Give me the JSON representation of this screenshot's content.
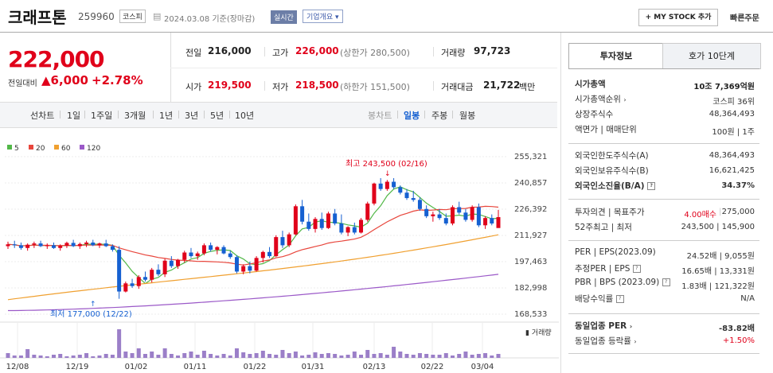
{
  "header": {
    "title": "크래프톤",
    "code": "259960",
    "market": "코스피",
    "date": "2024.03.08 기준(장마감)",
    "realtime": "실시간",
    "company_info": "기업개요",
    "mystock": "+ MY STOCK 추가",
    "quick_order": "빠른주문"
  },
  "price": {
    "current": "222,000",
    "change_label": "전일대비",
    "change": "▲6,000",
    "change_pct": "+2.78%"
  },
  "quote": {
    "prev_label": "전일",
    "prev": "216,000",
    "high_label": "고가",
    "high": "226,000",
    "upper_limit": "(상한가 280,500)",
    "volume_label": "거래량",
    "volume": "97,723",
    "open_label": "시가",
    "open": "219,500",
    "low_label": "저가",
    "low": "218,500",
    "lower_limit": "(하한가 151,500)",
    "amount_label": "거래대금",
    "amount": "21,722",
    "amount_unit": "백만"
  },
  "periods": {
    "line": "선차트",
    "d1": "1일",
    "w1": "1주일",
    "m3": "3개월",
    "y1": "1년",
    "y3": "3년",
    "y5": "5년",
    "y10": "10년"
  },
  "candle_periods": {
    "candle": "봉차트",
    "day": "일봉",
    "week": "주봉",
    "month": "월봉"
  },
  "legend": {
    "ma5": "5",
    "ma20": "20",
    "ma60": "60",
    "ma120": "120"
  },
  "colors": {
    "up": "#e0001a",
    "down": "#1560d1",
    "ma5": "#52b848",
    "ma20": "#e8463c",
    "ma60": "#f0a030",
    "ma120": "#9b59c8",
    "volume": "#9b7fc8"
  },
  "chart_data": {
    "type": "candlestick",
    "y_ticks": [
      "255,321",
      "240,857",
      "226,392",
      "211,927",
      "197,463",
      "182,998",
      "168,533"
    ],
    "ylim": [
      168533,
      255321
    ],
    "x_ticks": [
      "12/08",
      "12/19",
      "01/02",
      "01/11",
      "01/22",
      "01/31",
      "02/13",
      "02/22",
      "03/04"
    ],
    "high_annotation": "최고 243,500 (02/16)",
    "low_annotation": "최저 177,000 (12/22)",
    "volume_label": "거래량"
  },
  "info_tabs": {
    "tab1": "투자정보",
    "tab2": "호가 10단계"
  },
  "info": {
    "market_cap_label": "시가총액",
    "market_cap": "10조 7,369억원",
    "rank_label": "시가총액순위",
    "rank": "코스피 36위",
    "shares_label": "상장주식수",
    "shares": "48,364,493",
    "par_label": "액면가 | 매매단위",
    "par": "100원 | 1주",
    "foreign_limit_label": "외국인한도주식수(A)",
    "foreign_limit": "48,364,493",
    "foreign_hold_label": "외국인보유주식수(B)",
    "foreign_hold": "16,621,425",
    "foreign_ratio_label": "외국인소진율(B/A)",
    "foreign_ratio": "34.37%",
    "opinion_label": "투자의견 | 목표주가",
    "opinion": "4.00매수",
    "target": "275,000",
    "w52_label": "52주최고 | 최저",
    "w52": "243,500 | 145,900",
    "per_label": "PER | EPS(2023.09)",
    "per": "24.52배 | 9,055원",
    "eper_label": "추정PER | EPS",
    "eper": "16.65배 | 13,331원",
    "pbr_label": "PBR | BPS (2023.09)",
    "pbr": "1.83배 | 121,322원",
    "div_label": "배당수익률",
    "div": "N/A",
    "sector_per_label": "동일업종 PER",
    "sector_per": "-83.82배",
    "sector_rate_label": "동일업종 등락률",
    "sector_rate": "+1.50%"
  }
}
